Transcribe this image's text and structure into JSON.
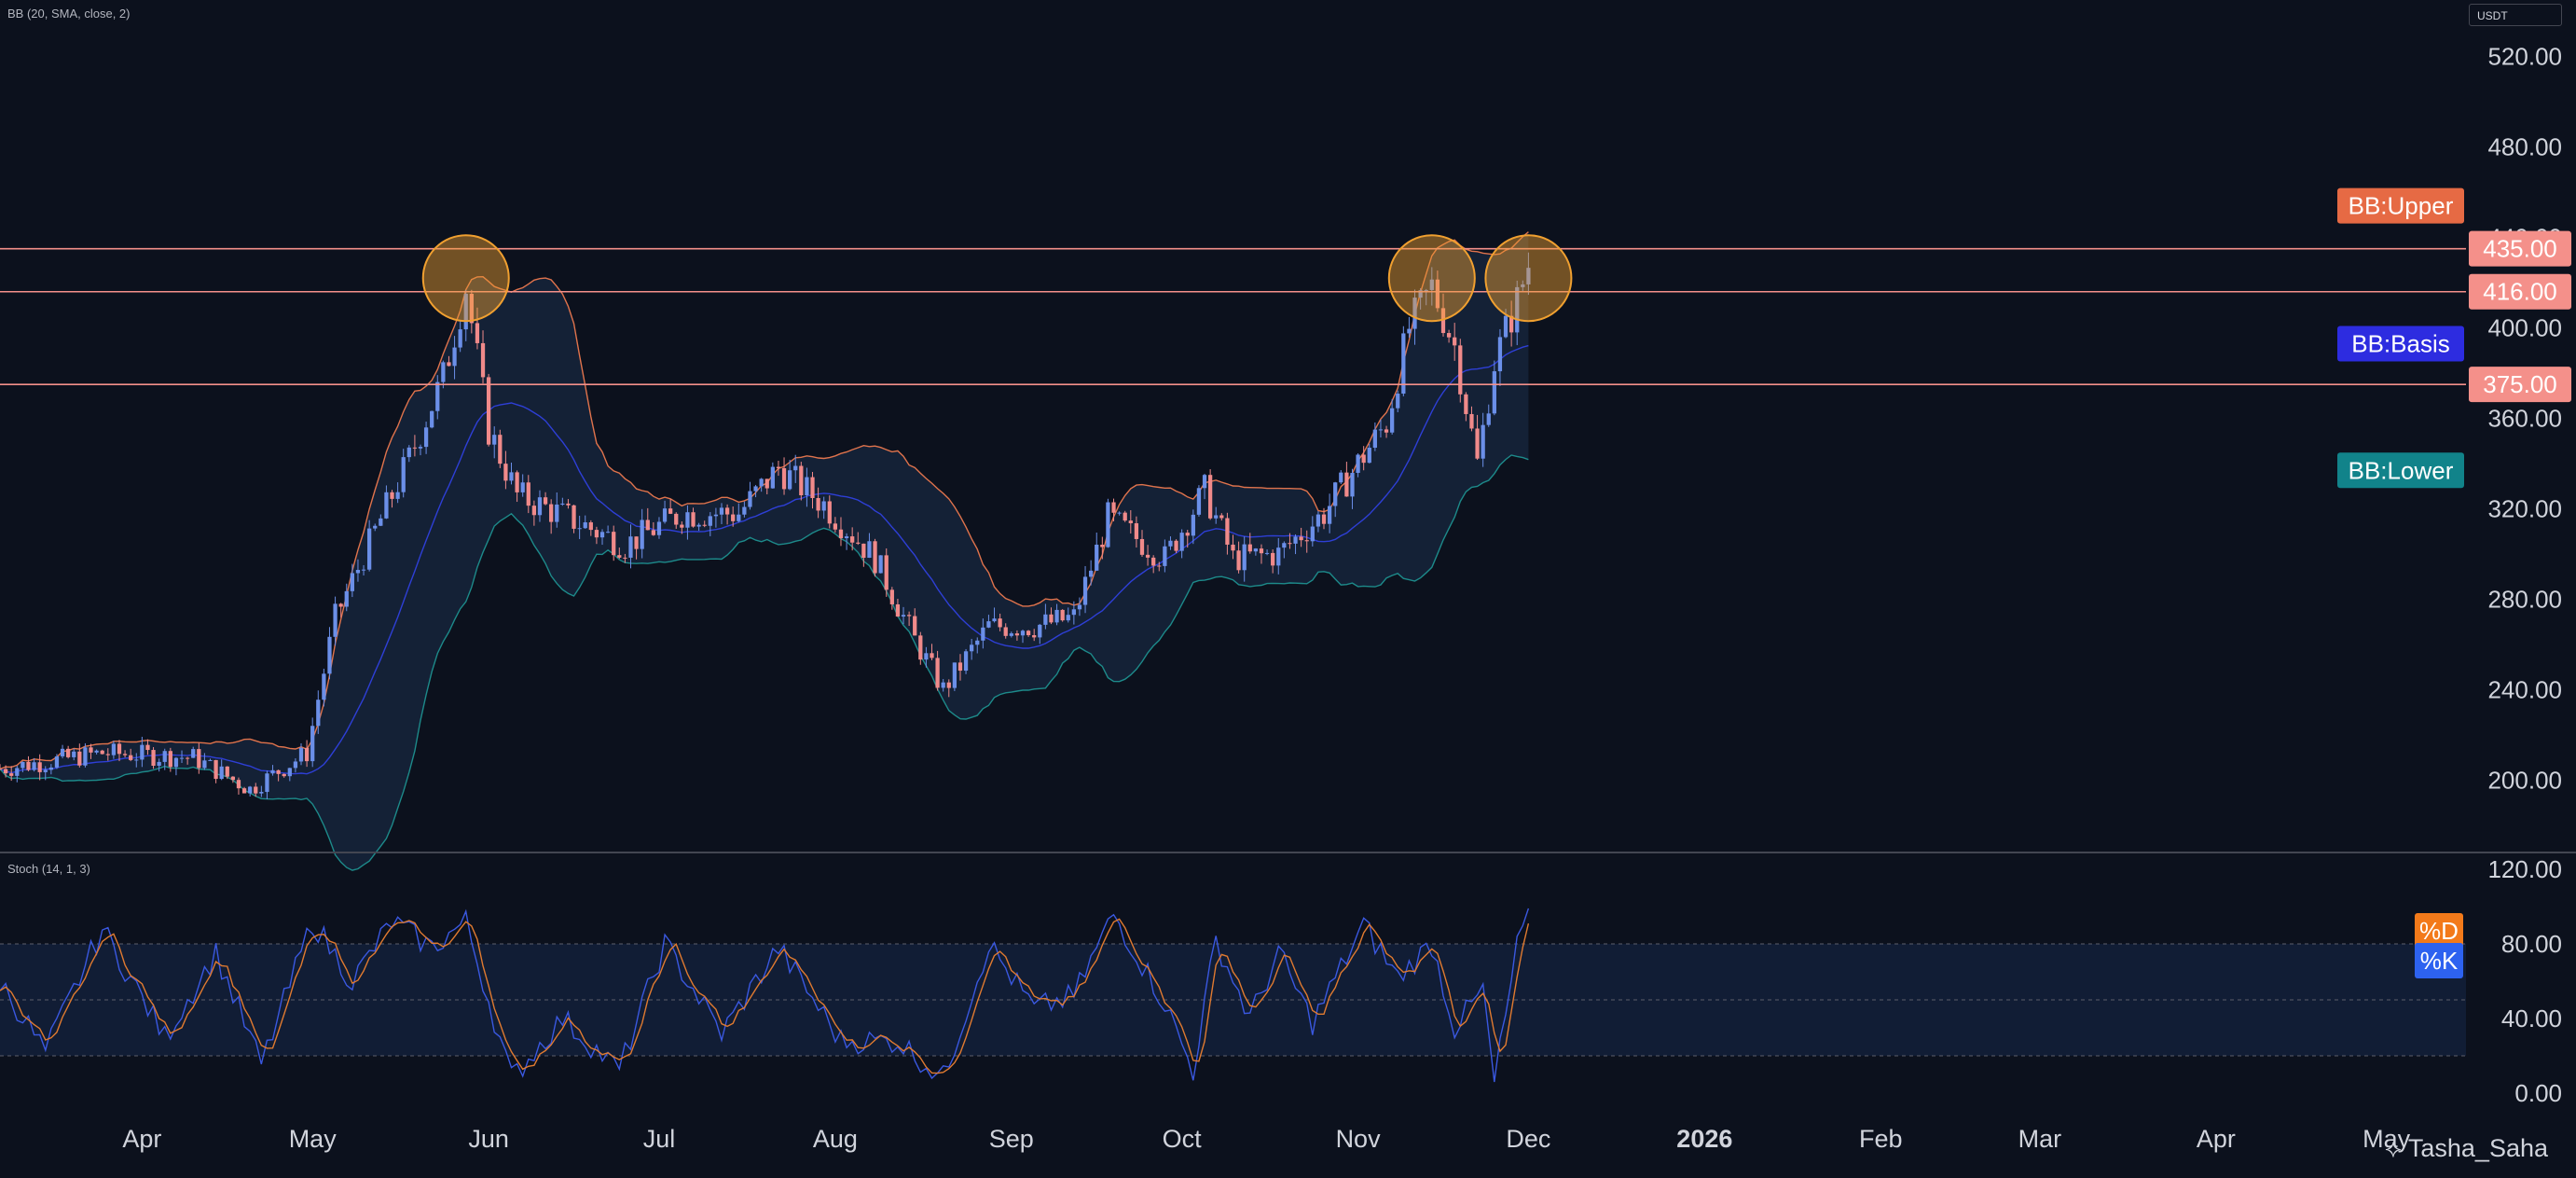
{
  "indicators": {
    "bb_title": "BB (20, SMA, close, 2)",
    "stoch_title": "Stoch (14, 1, 3)"
  },
  "currency": "USDT",
  "watermark": "Tasha_Saha",
  "colors": {
    "background": "#0c111d",
    "up_candle": "#6b8fe8",
    "down_candle": "#f08a8a",
    "bb_upper": "#e0734c",
    "bb_basis": "#2e3fd6",
    "bb_lower": "#1d8a8a",
    "level_line": "#f4908a",
    "stoch_k": "#3a58e0",
    "stoch_d": "#e07a30",
    "highlight_circle": "#f0a030"
  },
  "chart_data": [
    {
      "type": "candlestick",
      "title": "",
      "y_axis_ticks": [
        "520.00",
        "480.00",
        "440.00",
        "400.00",
        "360.00",
        "320.00",
        "280.00",
        "240.00",
        "200.00"
      ],
      "ylim": [
        168,
        545
      ],
      "x_axis_ticks": [
        "Apr",
        "May",
        "Jun",
        "Jul",
        "Aug",
        "Sep",
        "Oct",
        "Nov",
        "Dec",
        "2026",
        "Feb",
        "Mar",
        "Apr",
        "May"
      ],
      "x_tick_dates": [
        "2025-04-01",
        "2025-05-01",
        "2025-06-01",
        "2025-07-01",
        "2025-08-01",
        "2025-09-01",
        "2025-10-01",
        "2025-11-01",
        "2025-12-01",
        "2026-01-01",
        "2026-02-01",
        "2026-03-01",
        "2026-04-01",
        "2026-05-01"
      ],
      "x_range": [
        "2025-03-07",
        "2026-05-15"
      ],
      "last_candle_date": "2025-12-01",
      "close_waypoints": [
        {
          "date": "2025-03-07",
          "close": 205
        },
        {
          "date": "2025-03-25",
          "close": 212
        },
        {
          "date": "2025-04-10",
          "close": 210
        },
        {
          "date": "2025-04-20",
          "close": 196
        },
        {
          "date": "2025-04-30",
          "close": 212
        },
        {
          "date": "2025-05-05",
          "close": 272
        },
        {
          "date": "2025-05-12",
          "close": 310
        },
        {
          "date": "2025-05-18",
          "close": 342
        },
        {
          "date": "2025-05-24",
          "close": 378
        },
        {
          "date": "2025-05-28",
          "close": 418
        },
        {
          "date": "2025-06-01",
          "close": 355
        },
        {
          "date": "2025-06-06",
          "close": 326
        },
        {
          "date": "2025-06-15",
          "close": 316
        },
        {
          "date": "2025-06-25",
          "close": 304
        },
        {
          "date": "2025-07-05",
          "close": 318
        },
        {
          "date": "2025-07-15",
          "close": 318
        },
        {
          "date": "2025-07-22",
          "close": 338
        },
        {
          "date": "2025-07-30",
          "close": 322
        },
        {
          "date": "2025-08-08",
          "close": 298
        },
        {
          "date": "2025-08-15",
          "close": 262
        },
        {
          "date": "2025-08-20",
          "close": 240
        },
        {
          "date": "2025-08-28",
          "close": 268
        },
        {
          "date": "2025-09-05",
          "close": 268
        },
        {
          "date": "2025-09-12",
          "close": 272
        },
        {
          "date": "2025-09-18",
          "close": 316
        },
        {
          "date": "2025-09-28",
          "close": 298
        },
        {
          "date": "2025-10-05",
          "close": 328
        },
        {
          "date": "2025-10-10",
          "close": 298
        },
        {
          "date": "2025-10-18",
          "close": 300
        },
        {
          "date": "2025-10-26",
          "close": 318
        },
        {
          "date": "2025-11-01",
          "close": 340
        },
        {
          "date": "2025-11-06",
          "close": 358
        },
        {
          "date": "2025-11-10",
          "close": 400
        },
        {
          "date": "2025-11-14",
          "close": 418
        },
        {
          "date": "2025-11-18",
          "close": 392
        },
        {
          "date": "2025-11-22",
          "close": 340
        },
        {
          "date": "2025-11-25",
          "close": 385
        },
        {
          "date": "2025-11-29",
          "close": 412
        },
        {
          "date": "2025-12-01",
          "close": 428
        }
      ],
      "price_levels": [
        {
          "label": "435.00",
          "value": 435
        },
        {
          "label": "416.00",
          "value": 416
        },
        {
          "label": "375.00",
          "value": 375
        }
      ],
      "highlights": [
        {
          "date": "2025-05-28",
          "value": 422
        },
        {
          "date": "2025-11-14",
          "value": 422
        },
        {
          "date": "2025-12-01",
          "value": 422
        }
      ],
      "series_labels": [
        {
          "name": "BB:Upper",
          "color": "#e66a44",
          "value": 454
        },
        {
          "name": "BB:Basis",
          "color": "#2d2ce0",
          "value": 393
        },
        {
          "name": "BB:Lower",
          "color": "#11838a",
          "value": 337
        }
      ]
    },
    {
      "type": "line",
      "title": "",
      "y_axis_ticks": [
        "120.00",
        "80.00",
        "40.00",
        "0.00"
      ],
      "ylim": [
        -8,
        128
      ],
      "band": {
        "upper": 80,
        "middle": 50,
        "lower": 20
      },
      "k_waypoints": [
        {
          "date": "2025-03-07",
          "value": 60
        },
        {
          "date": "2025-03-15",
          "value": 22
        },
        {
          "date": "2025-03-25",
          "value": 88
        },
        {
          "date": "2025-04-05",
          "value": 30
        },
        {
          "date": "2025-04-14",
          "value": 75
        },
        {
          "date": "2025-04-22",
          "value": 15
        },
        {
          "date": "2025-05-01",
          "value": 92
        },
        {
          "date": "2025-05-08",
          "value": 60
        },
        {
          "date": "2025-05-15",
          "value": 92
        },
        {
          "date": "2025-05-22",
          "value": 78
        },
        {
          "date": "2025-05-28",
          "value": 92
        },
        {
          "date": "2025-06-05",
          "value": 8
        },
        {
          "date": "2025-06-14",
          "value": 40
        },
        {
          "date": "2025-06-24",
          "value": 12
        },
        {
          "date": "2025-07-02",
          "value": 80
        },
        {
          "date": "2025-07-12",
          "value": 32
        },
        {
          "date": "2025-07-22",
          "value": 78
        },
        {
          "date": "2025-08-02",
          "value": 28
        },
        {
          "date": "2025-08-12",
          "value": 28
        },
        {
          "date": "2025-08-20",
          "value": 8
        },
        {
          "date": "2025-08-28",
          "value": 80
        },
        {
          "date": "2025-09-05",
          "value": 45
        },
        {
          "date": "2025-09-12",
          "value": 52
        },
        {
          "date": "2025-09-19",
          "value": 96
        },
        {
          "date": "2025-09-28",
          "value": 48
        },
        {
          "date": "2025-10-03",
          "value": 12
        },
        {
          "date": "2025-10-07",
          "value": 82
        },
        {
          "date": "2025-10-13",
          "value": 40
        },
        {
          "date": "2025-10-18",
          "value": 75
        },
        {
          "date": "2025-10-24",
          "value": 38
        },
        {
          "date": "2025-11-02",
          "value": 90
        },
        {
          "date": "2025-11-08",
          "value": 62
        },
        {
          "date": "2025-11-14",
          "value": 80
        },
        {
          "date": "2025-11-18",
          "value": 35
        },
        {
          "date": "2025-11-23",
          "value": 55
        },
        {
          "date": "2025-11-25",
          "value": 5
        },
        {
          "date": "2025-11-29",
          "value": 78
        },
        {
          "date": "2025-12-01",
          "value": 95
        }
      ],
      "series_labels": [
        {
          "name": "%D",
          "color": "#f37a1a",
          "value": 87
        },
        {
          "name": "%K",
          "color": "#2d62f0",
          "value": 71
        }
      ]
    }
  ]
}
